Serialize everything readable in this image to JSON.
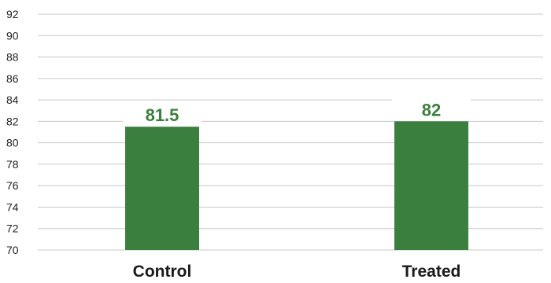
{
  "chart_data": {
    "type": "bar",
    "categories": [
      "Control",
      "Treated"
    ],
    "values": [
      81.5,
      82
    ],
    "data_labels": [
      "81.5",
      "82"
    ],
    "ylim": [
      70,
      92
    ],
    "yticks": [
      70,
      72,
      74,
      76,
      78,
      80,
      82,
      84,
      86,
      88,
      90,
      92
    ],
    "grid": true,
    "legend": "none",
    "title": "",
    "xlabel": "",
    "ylabel": ""
  },
  "colors": {
    "bar": "#3a7f3e",
    "data_label": "#3a7f3e",
    "grid": "#c8c8c8",
    "text": "#1a1a1a"
  }
}
